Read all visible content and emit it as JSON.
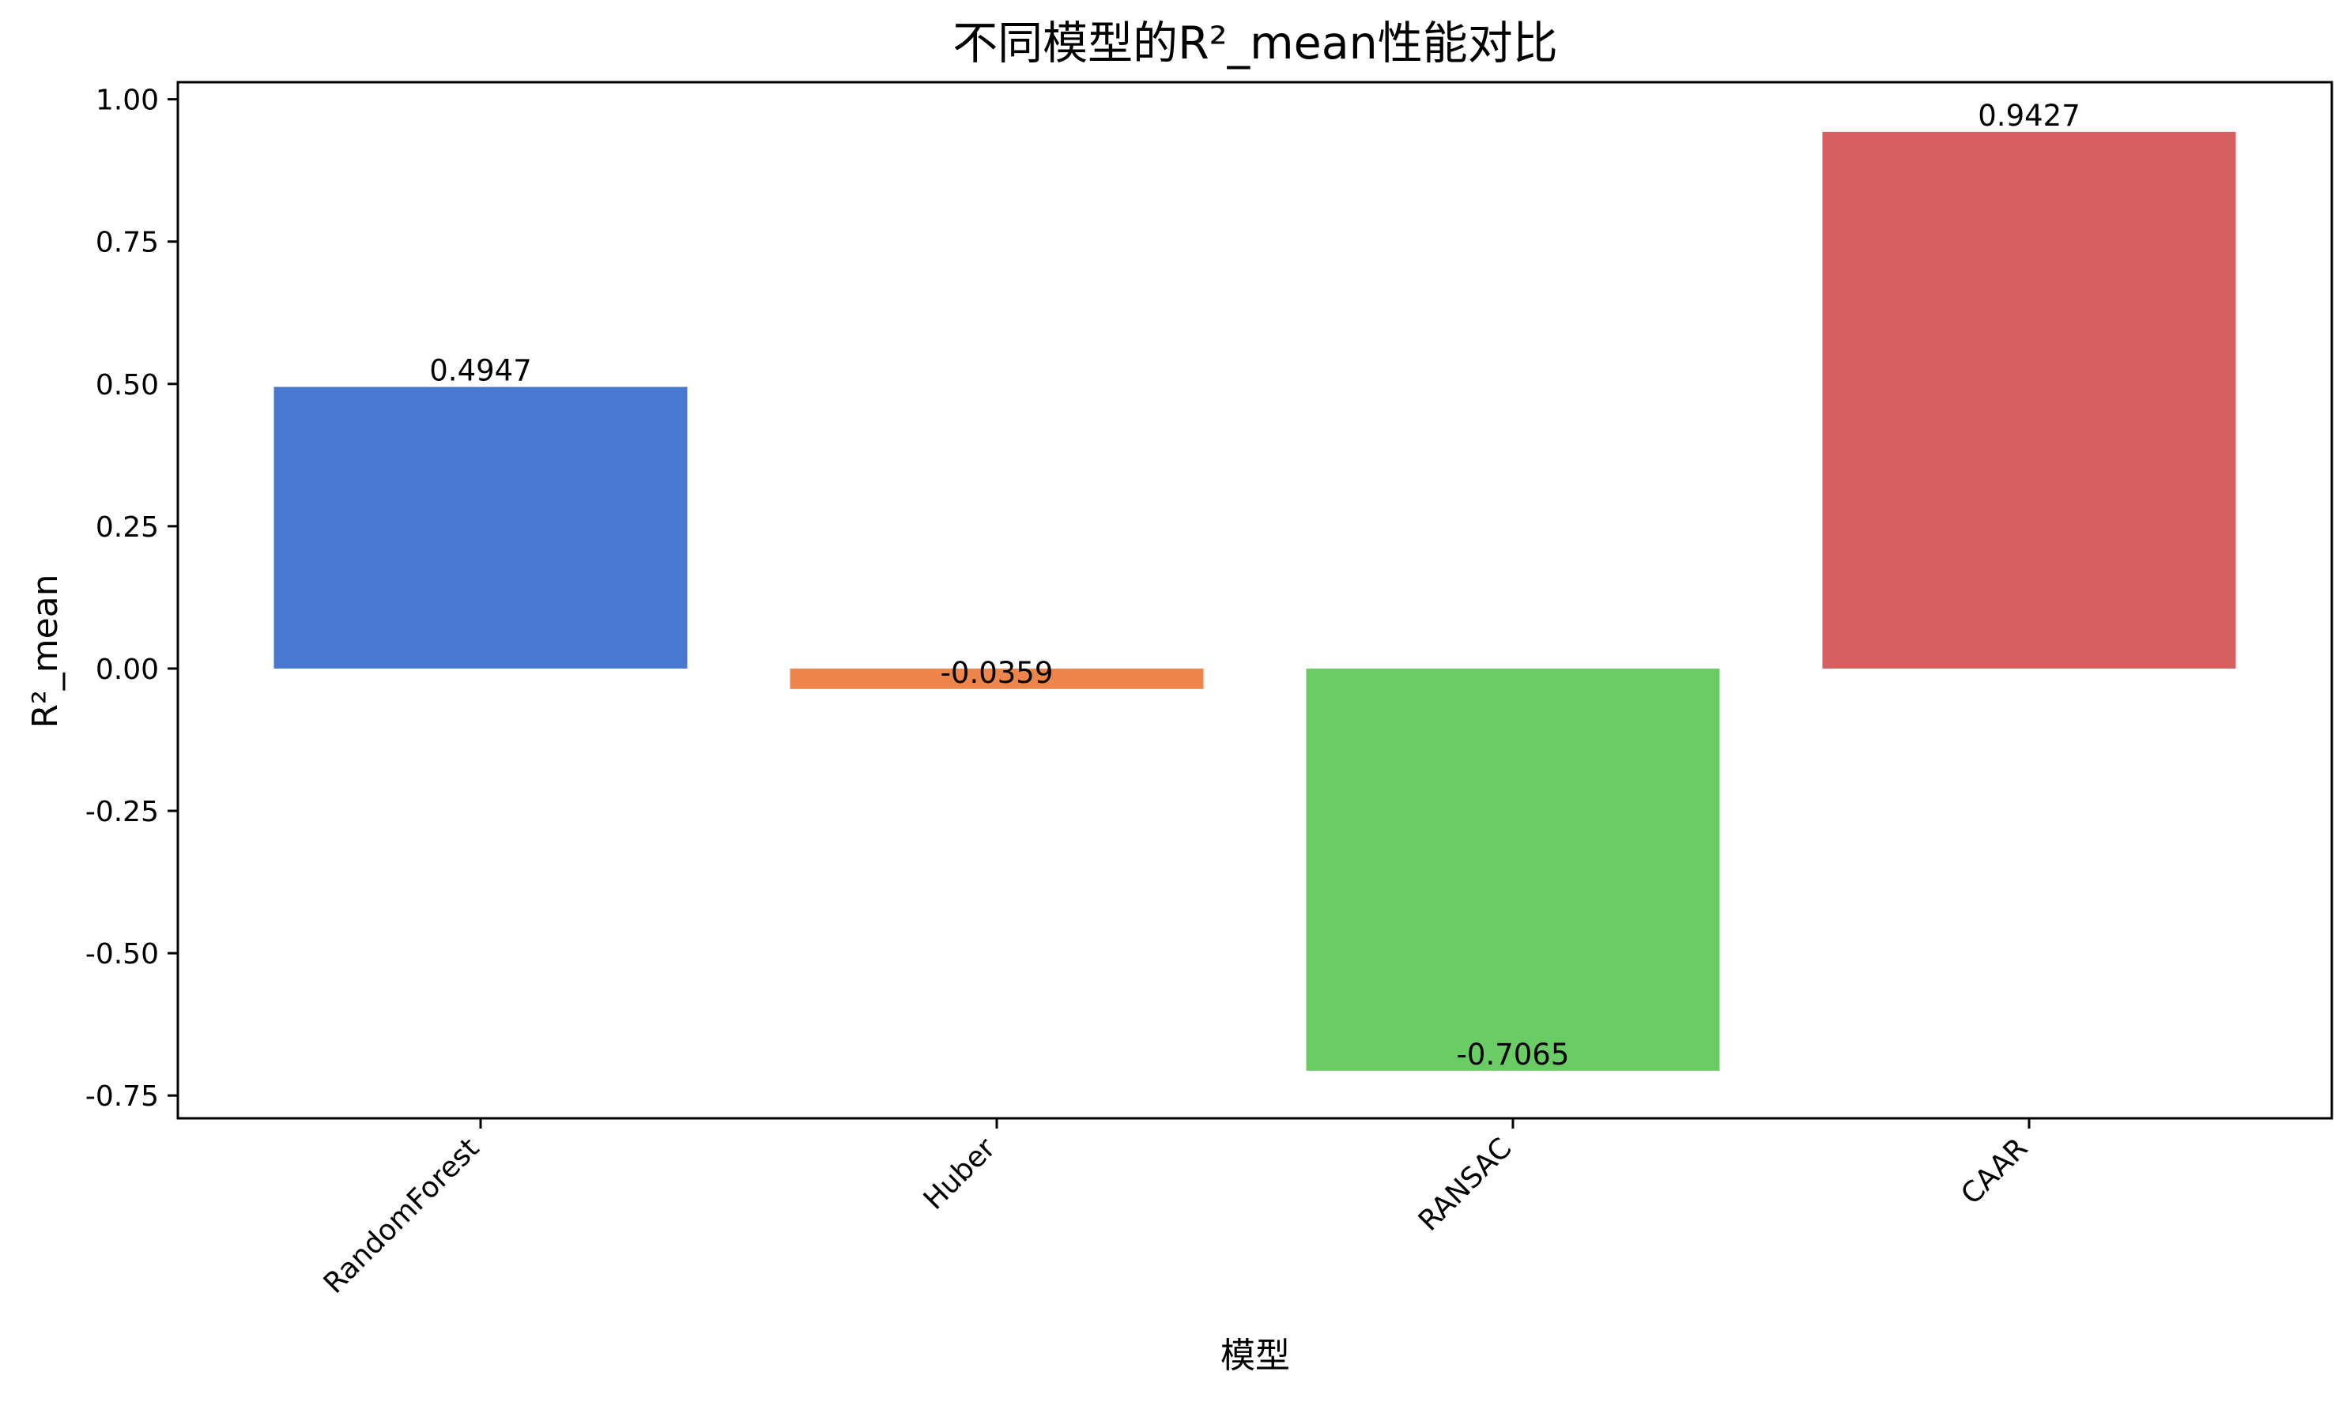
{
  "chart_data": {
    "type": "bar",
    "title": "不同模型的R²_mean性能对比",
    "xlabel": "模型",
    "ylabel": "R²_mean",
    "categories": [
      "RandomForest",
      "Huber",
      "RANSAC",
      "CAAR"
    ],
    "values": [
      0.4947,
      -0.0359,
      -0.7065,
      0.9427
    ],
    "value_labels": [
      "0.4947",
      "-0.0359",
      "-0.7065",
      "0.9427"
    ],
    "colors": [
      "#4878cf",
      "#ee854a",
      "#6acc64",
      "#d65f5f"
    ],
    "ylim": [
      -0.79,
      1.03
    ],
    "yticks": [
      -0.75,
      -0.5,
      -0.25,
      0.0,
      0.25,
      0.5,
      0.75,
      1.0
    ],
    "ytick_labels": [
      "-0.75",
      "-0.50",
      "-0.25",
      "0.00",
      "0.25",
      "0.50",
      "0.75",
      "1.00"
    ],
    "grid": false,
    "legend": false
  }
}
